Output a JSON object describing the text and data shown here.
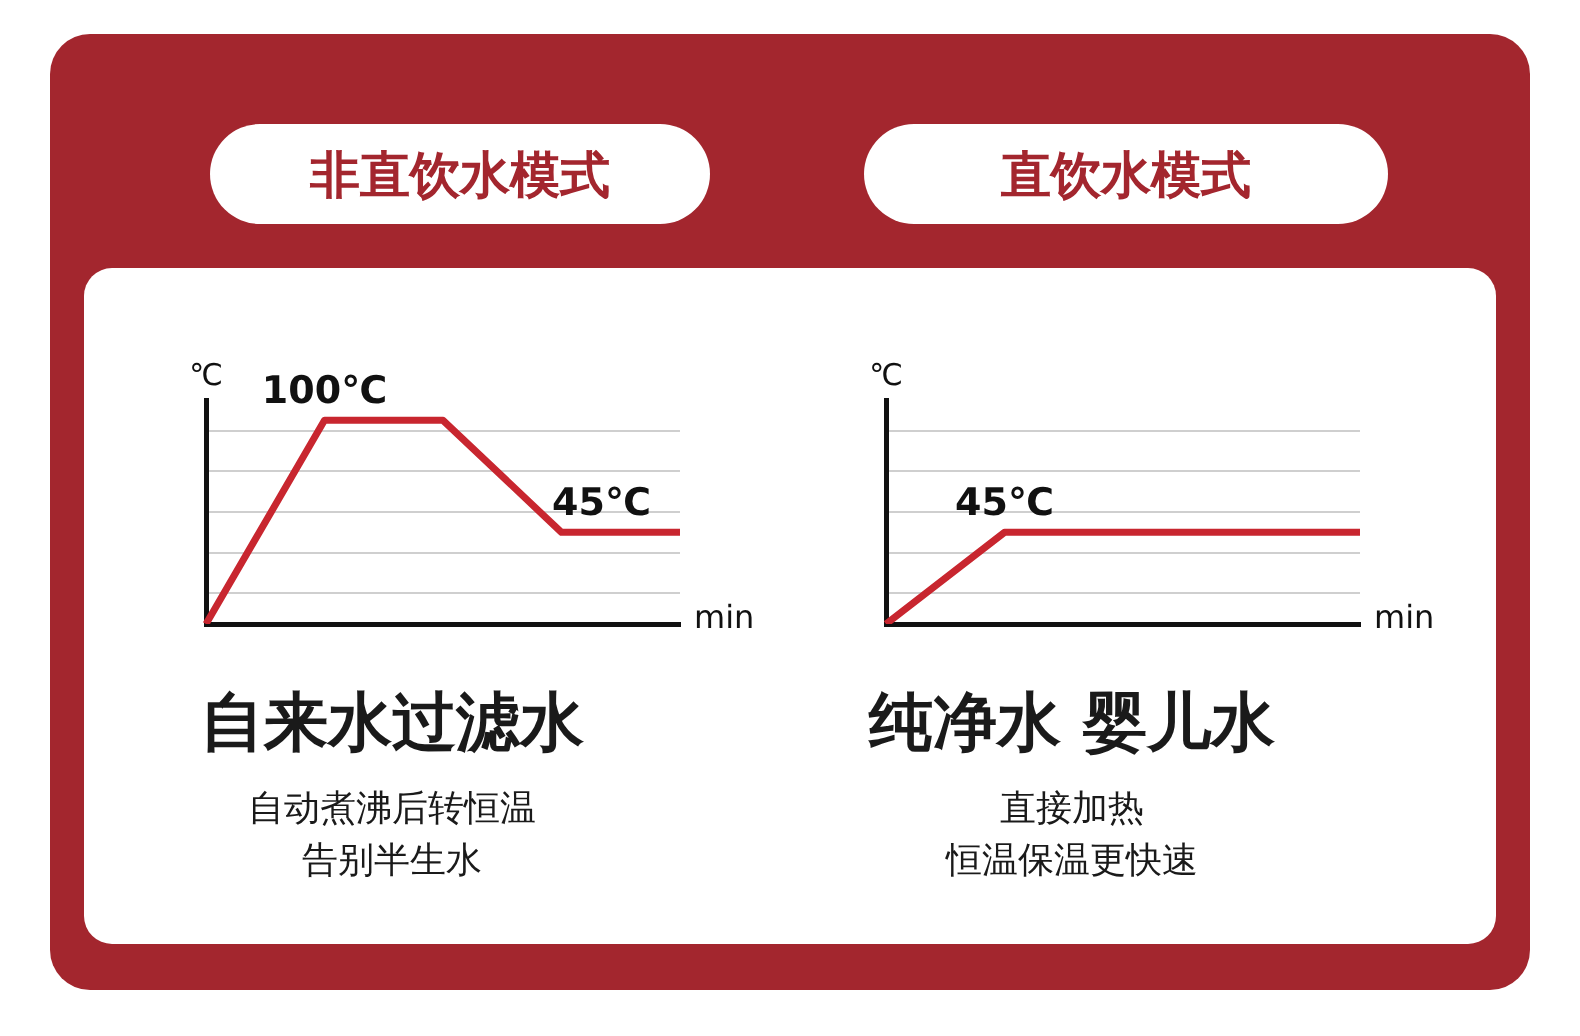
{
  "chart_data": [
    {
      "type": "line",
      "title": "非直饮水模式",
      "subtitle": "自来水过滤水",
      "annotations": [
        "自动煮沸后转恒温",
        "告别半生水"
      ],
      "xlabel": "min",
      "ylabel": "℃",
      "ylim": [
        0,
        110
      ],
      "yticks": [
        {
          "value": 15,
          "label": null
        },
        {
          "value": 35,
          "label": null
        },
        {
          "value": 55,
          "label": null
        },
        {
          "value": 75,
          "label": null
        },
        {
          "value": 95,
          "label": null
        }
      ],
      "grid": "y",
      "categories": [
        null,
        null,
        null,
        null,
        null
      ],
      "series": [
        {
          "color": "#c8262f",
          "values": [
            0,
            100,
            100,
            45,
            45
          ],
          "value_labels": [
            null,
            "100℃",
            null,
            "45℃",
            null
          ]
        }
      ]
    },
    {
      "type": "line",
      "title": "直饮水模式",
      "subtitle": "纯净水 婴儿水",
      "annotations": [
        "直接加热",
        "恒温保温更快速"
      ],
      "xlabel": "min",
      "ylabel": "℃",
      "ylim": [
        0,
        110
      ],
      "yticks": [
        {
          "value": 15,
          "label": null
        },
        {
          "value": 35,
          "label": null
        },
        {
          "value": 55,
          "label": null
        },
        {
          "value": 75,
          "label": null
        },
        {
          "value": 95,
          "label": null
        }
      ],
      "grid": "y",
      "categories": [
        null,
        null,
        null,
        null,
        null
      ],
      "series": [
        {
          "color": "#c8262f",
          "values": [
            0,
            45,
            45,
            45,
            45
          ],
          "value_labels": [
            null,
            "45℃",
            null,
            null,
            null
          ]
        }
      ]
    }
  ]
}
